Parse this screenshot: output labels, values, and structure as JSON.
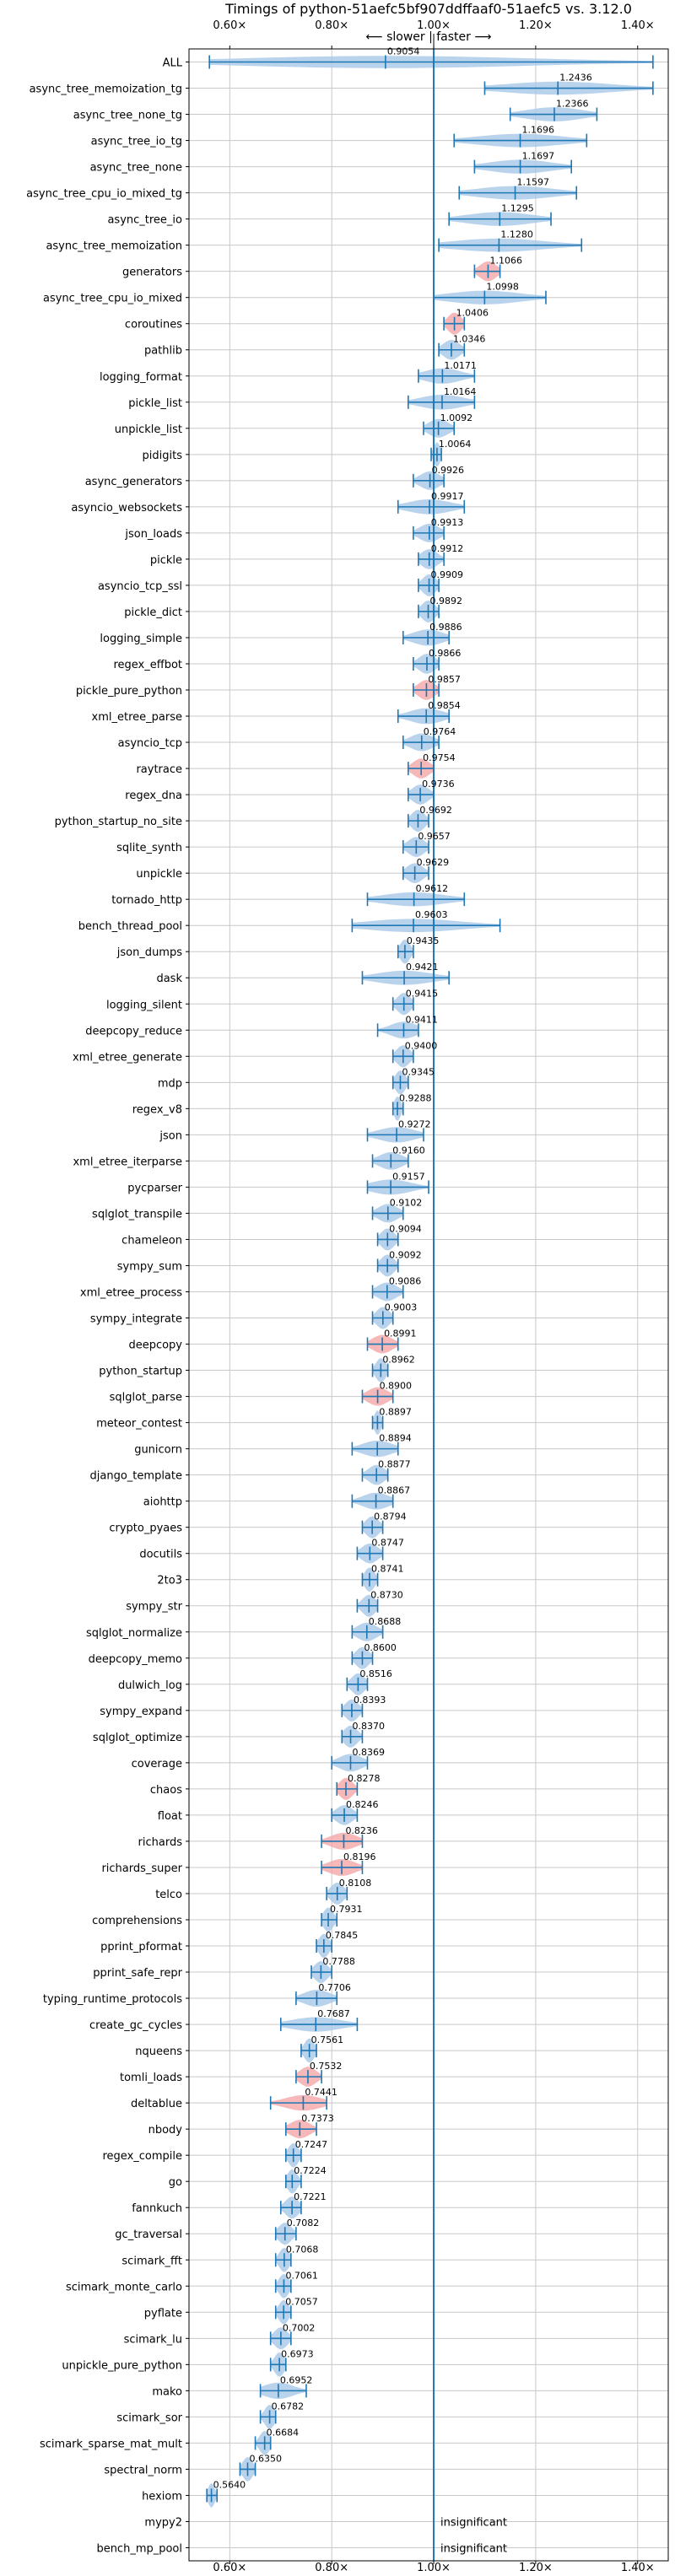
{
  "chart_data": {
    "type": "violin",
    "title": "Timings of python-51aefc5bf907ddffaaf0-51aefc5 vs. 3.12.0",
    "annotation": "⟵ slower | faster ⟶",
    "xlim": [
      0.52,
      1.46
    ],
    "xticks": [
      "0.60×",
      "0.80×",
      "1.00×",
      "1.20×",
      "1.40×"
    ],
    "xtick_values": [
      0.6,
      0.8,
      1.0,
      1.2,
      1.4
    ],
    "grid": true,
    "colors": {
      "faster": "#a8c8e8",
      "slower": "#f4a6a6",
      "line": "#1f77b4",
      "grid": "#c8c8c8"
    },
    "insignificant_label": "insignificant",
    "benchmarks": [
      {
        "name": "ALL",
        "value": 0.9054,
        "color": "blue",
        "min": 0.56,
        "max": 1.43
      },
      {
        "name": "async_tree_memoization_tg",
        "value": 1.2436,
        "color": "blue",
        "min": 1.1,
        "max": 1.43
      },
      {
        "name": "async_tree_none_tg",
        "value": 1.2366,
        "color": "blue",
        "min": 1.15,
        "max": 1.32
      },
      {
        "name": "async_tree_io_tg",
        "value": 1.1696,
        "color": "blue",
        "min": 1.04,
        "max": 1.3
      },
      {
        "name": "async_tree_none",
        "value": 1.1697,
        "color": "blue",
        "min": 1.08,
        "max": 1.27
      },
      {
        "name": "async_tree_cpu_io_mixed_tg",
        "value": 1.1597,
        "color": "blue",
        "min": 1.05,
        "max": 1.28
      },
      {
        "name": "async_tree_io",
        "value": 1.1295,
        "color": "blue",
        "min": 1.03,
        "max": 1.23
      },
      {
        "name": "async_tree_memoization",
        "value": 1.128,
        "color": "blue",
        "min": 1.01,
        "max": 1.29
      },
      {
        "name": "generators",
        "value": 1.1066,
        "color": "red",
        "min": 1.08,
        "max": 1.13
      },
      {
        "name": "async_tree_cpu_io_mixed",
        "value": 1.0998,
        "color": "blue",
        "min": 1.0,
        "max": 1.22
      },
      {
        "name": "coroutines",
        "value": 1.0406,
        "color": "red",
        "min": 1.02,
        "max": 1.06
      },
      {
        "name": "pathlib",
        "value": 1.0346,
        "color": "blue",
        "min": 1.01,
        "max": 1.06
      },
      {
        "name": "logging_format",
        "value": 1.0171,
        "color": "blue",
        "min": 0.97,
        "max": 1.08
      },
      {
        "name": "pickle_list",
        "value": 1.0164,
        "color": "blue",
        "min": 0.95,
        "max": 1.08
      },
      {
        "name": "unpickle_list",
        "value": 1.0092,
        "color": "blue",
        "min": 0.98,
        "max": 1.04
      },
      {
        "name": "pidigits",
        "value": 1.0064,
        "color": "blue",
        "min": 0.995,
        "max": 1.015
      },
      {
        "name": "async_generators",
        "value": 0.9926,
        "color": "blue",
        "min": 0.96,
        "max": 1.02
      },
      {
        "name": "asyncio_websockets",
        "value": 0.9917,
        "color": "blue",
        "min": 0.93,
        "max": 1.06
      },
      {
        "name": "json_loads",
        "value": 0.9913,
        "color": "blue",
        "min": 0.96,
        "max": 1.02
      },
      {
        "name": "pickle",
        "value": 0.9912,
        "color": "blue",
        "min": 0.97,
        "max": 1.02
      },
      {
        "name": "asyncio_tcp_ssl",
        "value": 0.9909,
        "color": "blue",
        "min": 0.97,
        "max": 1.01
      },
      {
        "name": "pickle_dict",
        "value": 0.9892,
        "color": "blue",
        "min": 0.97,
        "max": 1.01
      },
      {
        "name": "logging_simple",
        "value": 0.9886,
        "color": "blue",
        "min": 0.94,
        "max": 1.03
      },
      {
        "name": "regex_effbot",
        "value": 0.9866,
        "color": "blue",
        "min": 0.96,
        "max": 1.01
      },
      {
        "name": "pickle_pure_python",
        "value": 0.9857,
        "color": "red",
        "min": 0.96,
        "max": 1.01
      },
      {
        "name": "xml_etree_parse",
        "value": 0.9854,
        "color": "blue",
        "min": 0.93,
        "max": 1.03
      },
      {
        "name": "asyncio_tcp",
        "value": 0.9764,
        "color": "blue",
        "min": 0.94,
        "max": 1.01
      },
      {
        "name": "raytrace",
        "value": 0.9754,
        "color": "red",
        "min": 0.95,
        "max": 1.0
      },
      {
        "name": "regex_dna",
        "value": 0.9736,
        "color": "blue",
        "min": 0.95,
        "max": 1.0
      },
      {
        "name": "python_startup_no_site",
        "value": 0.9692,
        "color": "blue",
        "min": 0.95,
        "max": 0.99
      },
      {
        "name": "sqlite_synth",
        "value": 0.9657,
        "color": "blue",
        "min": 0.94,
        "max": 0.99
      },
      {
        "name": "unpickle",
        "value": 0.9629,
        "color": "blue",
        "min": 0.94,
        "max": 0.99
      },
      {
        "name": "tornado_http",
        "value": 0.9612,
        "color": "blue",
        "min": 0.87,
        "max": 1.06
      },
      {
        "name": "bench_thread_pool",
        "value": 0.9603,
        "color": "blue",
        "min": 0.84,
        "max": 1.13
      },
      {
        "name": "json_dumps",
        "value": 0.9435,
        "color": "blue",
        "min": 0.93,
        "max": 0.96
      },
      {
        "name": "dask",
        "value": 0.9421,
        "color": "blue",
        "min": 0.86,
        "max": 1.03
      },
      {
        "name": "logging_silent",
        "value": 0.9415,
        "color": "blue",
        "min": 0.92,
        "max": 0.96
      },
      {
        "name": "deepcopy_reduce",
        "value": 0.9411,
        "color": "blue",
        "min": 0.89,
        "max": 0.97
      },
      {
        "name": "xml_etree_generate",
        "value": 0.94,
        "color": "blue",
        "min": 0.92,
        "max": 0.96
      },
      {
        "name": "mdp",
        "value": 0.9345,
        "color": "blue",
        "min": 0.92,
        "max": 0.95
      },
      {
        "name": "regex_v8",
        "value": 0.9288,
        "color": "blue",
        "min": 0.92,
        "max": 0.94
      },
      {
        "name": "json",
        "value": 0.9272,
        "color": "blue",
        "min": 0.87,
        "max": 0.98
      },
      {
        "name": "xml_etree_iterparse",
        "value": 0.916,
        "color": "blue",
        "min": 0.88,
        "max": 0.95
      },
      {
        "name": "pycparser",
        "value": 0.9157,
        "color": "blue",
        "min": 0.87,
        "max": 0.99
      },
      {
        "name": "sqlglot_transpile",
        "value": 0.9102,
        "color": "blue",
        "min": 0.88,
        "max": 0.94
      },
      {
        "name": "chameleon",
        "value": 0.9094,
        "color": "blue",
        "min": 0.89,
        "max": 0.93
      },
      {
        "name": "sympy_sum",
        "value": 0.9092,
        "color": "blue",
        "min": 0.89,
        "max": 0.93
      },
      {
        "name": "xml_etree_process",
        "value": 0.9086,
        "color": "blue",
        "min": 0.88,
        "max": 0.94
      },
      {
        "name": "sympy_integrate",
        "value": 0.9003,
        "color": "blue",
        "min": 0.88,
        "max": 0.92
      },
      {
        "name": "deepcopy",
        "value": 0.8991,
        "color": "red",
        "min": 0.87,
        "max": 0.93
      },
      {
        "name": "python_startup",
        "value": 0.8962,
        "color": "blue",
        "min": 0.88,
        "max": 0.91
      },
      {
        "name": "sqlglot_parse",
        "value": 0.89,
        "color": "red",
        "min": 0.86,
        "max": 0.92
      },
      {
        "name": "meteor_contest",
        "value": 0.8897,
        "color": "blue",
        "min": 0.88,
        "max": 0.9
      },
      {
        "name": "gunicorn",
        "value": 0.8894,
        "color": "blue",
        "min": 0.84,
        "max": 0.93
      },
      {
        "name": "django_template",
        "value": 0.8877,
        "color": "blue",
        "min": 0.86,
        "max": 0.91
      },
      {
        "name": "aiohttp",
        "value": 0.8867,
        "color": "blue",
        "min": 0.84,
        "max": 0.92
      },
      {
        "name": "crypto_pyaes",
        "value": 0.8794,
        "color": "blue",
        "min": 0.86,
        "max": 0.9
      },
      {
        "name": "docutils",
        "value": 0.8747,
        "color": "blue",
        "min": 0.85,
        "max": 0.9
      },
      {
        "name": "2to3",
        "value": 0.8741,
        "color": "blue",
        "min": 0.86,
        "max": 0.89
      },
      {
        "name": "sympy_str",
        "value": 0.873,
        "color": "blue",
        "min": 0.85,
        "max": 0.89
      },
      {
        "name": "sqlglot_normalize",
        "value": 0.8688,
        "color": "blue",
        "min": 0.84,
        "max": 0.9
      },
      {
        "name": "deepcopy_memo",
        "value": 0.86,
        "color": "blue",
        "min": 0.84,
        "max": 0.88
      },
      {
        "name": "dulwich_log",
        "value": 0.8516,
        "color": "blue",
        "min": 0.83,
        "max": 0.87
      },
      {
        "name": "sympy_expand",
        "value": 0.8393,
        "color": "blue",
        "min": 0.82,
        "max": 0.86
      },
      {
        "name": "sqlglot_optimize",
        "value": 0.837,
        "color": "blue",
        "min": 0.82,
        "max": 0.86
      },
      {
        "name": "coverage",
        "value": 0.8369,
        "color": "blue",
        "min": 0.8,
        "max": 0.87
      },
      {
        "name": "chaos",
        "value": 0.8278,
        "color": "red",
        "min": 0.81,
        "max": 0.85
      },
      {
        "name": "float",
        "value": 0.8246,
        "color": "blue",
        "min": 0.8,
        "max": 0.85
      },
      {
        "name": "richards",
        "value": 0.8236,
        "color": "red",
        "min": 0.78,
        "max": 0.86
      },
      {
        "name": "richards_super",
        "value": 0.8196,
        "color": "red",
        "min": 0.78,
        "max": 0.86
      },
      {
        "name": "telco",
        "value": 0.8108,
        "color": "blue",
        "min": 0.79,
        "max": 0.83
      },
      {
        "name": "comprehensions",
        "value": 0.7931,
        "color": "blue",
        "min": 0.78,
        "max": 0.81
      },
      {
        "name": "pprint_pformat",
        "value": 0.7845,
        "color": "blue",
        "min": 0.77,
        "max": 0.8
      },
      {
        "name": "pprint_safe_repr",
        "value": 0.7788,
        "color": "blue",
        "min": 0.76,
        "max": 0.8
      },
      {
        "name": "typing_runtime_protocols",
        "value": 0.7706,
        "color": "blue",
        "min": 0.73,
        "max": 0.81
      },
      {
        "name": "create_gc_cycles",
        "value": 0.7687,
        "color": "blue",
        "min": 0.7,
        "max": 0.85
      },
      {
        "name": "nqueens",
        "value": 0.7561,
        "color": "blue",
        "min": 0.74,
        "max": 0.77
      },
      {
        "name": "tomli_loads",
        "value": 0.7532,
        "color": "red",
        "min": 0.73,
        "max": 0.78
      },
      {
        "name": "deltablue",
        "value": 0.7441,
        "color": "red",
        "min": 0.68,
        "max": 0.79
      },
      {
        "name": "nbody",
        "value": 0.7373,
        "color": "red",
        "min": 0.71,
        "max": 0.77
      },
      {
        "name": "regex_compile",
        "value": 0.7247,
        "color": "blue",
        "min": 0.71,
        "max": 0.74
      },
      {
        "name": "go",
        "value": 0.7224,
        "color": "blue",
        "min": 0.71,
        "max": 0.74
      },
      {
        "name": "fannkuch",
        "value": 0.7221,
        "color": "blue",
        "min": 0.7,
        "max": 0.74
      },
      {
        "name": "gc_traversal",
        "value": 0.7082,
        "color": "blue",
        "min": 0.69,
        "max": 0.73
      },
      {
        "name": "scimark_fft",
        "value": 0.7068,
        "color": "blue",
        "min": 0.69,
        "max": 0.72
      },
      {
        "name": "scimark_monte_carlo",
        "value": 0.7061,
        "color": "blue",
        "min": 0.69,
        "max": 0.72
      },
      {
        "name": "pyflate",
        "value": 0.7057,
        "color": "blue",
        "min": 0.69,
        "max": 0.72
      },
      {
        "name": "scimark_lu",
        "value": 0.7002,
        "color": "blue",
        "min": 0.68,
        "max": 0.72
      },
      {
        "name": "unpickle_pure_python",
        "value": 0.6973,
        "color": "blue",
        "min": 0.68,
        "max": 0.71
      },
      {
        "name": "mako",
        "value": 0.6952,
        "color": "blue",
        "min": 0.66,
        "max": 0.75
      },
      {
        "name": "scimark_sor",
        "value": 0.6782,
        "color": "blue",
        "min": 0.66,
        "max": 0.69
      },
      {
        "name": "scimark_sparse_mat_mult",
        "value": 0.6684,
        "color": "blue",
        "min": 0.65,
        "max": 0.68
      },
      {
        "name": "spectral_norm",
        "value": 0.635,
        "color": "blue",
        "min": 0.62,
        "max": 0.65
      },
      {
        "name": "hexiom",
        "value": 0.564,
        "color": "blue",
        "min": 0.555,
        "max": 0.575
      },
      {
        "name": "mypy2",
        "value": null,
        "color": "none",
        "min": null,
        "max": null
      },
      {
        "name": "bench_mp_pool",
        "value": null,
        "color": "none",
        "min": null,
        "max": null
      }
    ]
  }
}
